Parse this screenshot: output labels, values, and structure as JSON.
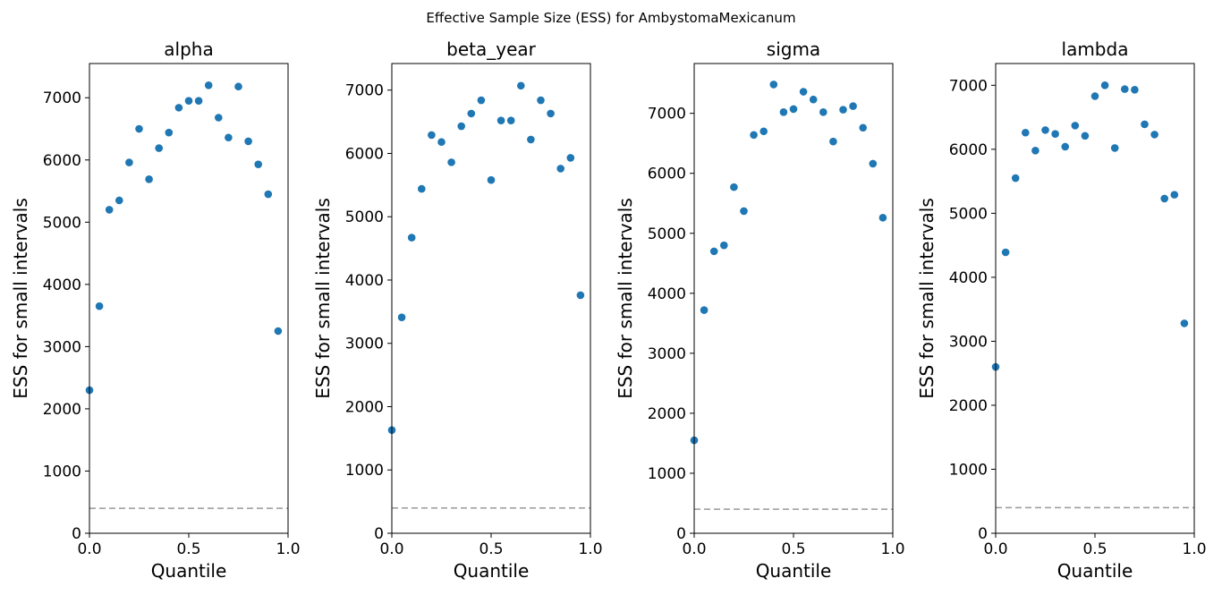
{
  "figure": {
    "suptitle": "Effective Sample Size (ESS) for AmbystomaMexicanum"
  },
  "colors": {
    "point": "#1f77b4",
    "reference_line": "#999999"
  },
  "chart_data": [
    {
      "type": "scatter",
      "title": "alpha",
      "xlabel": "Quantile",
      "ylabel": "ESS for small intervals",
      "xlim": [
        0,
        1
      ],
      "ylim": [
        0,
        7550
      ],
      "xticks": [
        "0.0",
        "0.5",
        "1.0"
      ],
      "yticks": [
        0,
        1000,
        2000,
        3000,
        4000,
        5000,
        6000,
        7000
      ],
      "reference_y": 400,
      "grid": false,
      "x": [
        0.0,
        0.05,
        0.1,
        0.15,
        0.2,
        0.25,
        0.3,
        0.35,
        0.4,
        0.45,
        0.5,
        0.55,
        0.6,
        0.65,
        0.7,
        0.75,
        0.8,
        0.85,
        0.9,
        0.95
      ],
      "y": [
        2300,
        3650,
        5200,
        5350,
        5960,
        6500,
        5690,
        6190,
        6440,
        6840,
        6950,
        6950,
        7200,
        6680,
        6360,
        7180,
        6300,
        5930,
        5450,
        3250
      ]
    },
    {
      "type": "scatter",
      "title": "beta_year",
      "xlabel": "Quantile",
      "ylabel": "ESS for small intervals",
      "xlim": [
        0,
        1
      ],
      "ylim": [
        0,
        7420
      ],
      "xticks": [
        "0.0",
        "0.5",
        "1.0"
      ],
      "yticks": [
        0,
        1000,
        2000,
        3000,
        4000,
        5000,
        6000,
        7000
      ],
      "reference_y": 400,
      "grid": false,
      "x": [
        0.0,
        0.05,
        0.1,
        0.15,
        0.2,
        0.25,
        0.3,
        0.35,
        0.4,
        0.45,
        0.5,
        0.55,
        0.6,
        0.65,
        0.7,
        0.75,
        0.8,
        0.85,
        0.9,
        0.95
      ],
      "y": [
        1630,
        3410,
        4670,
        5440,
        6290,
        6180,
        5860,
        6430,
        6630,
        6840,
        5580,
        6520,
        6520,
        7070,
        6220,
        6840,
        6630,
        5760,
        5930,
        3760
      ]
    },
    {
      "type": "scatter",
      "title": "sigma",
      "xlabel": "Quantile",
      "ylabel": "ESS for small intervals",
      "xlim": [
        0,
        1
      ],
      "ylim": [
        0,
        7830
      ],
      "xticks": [
        "0.0",
        "0.5",
        "1.0"
      ],
      "yticks": [
        0,
        1000,
        2000,
        3000,
        4000,
        5000,
        6000,
        7000
      ],
      "reference_y": 400,
      "grid": false,
      "x": [
        0.0,
        0.05,
        0.1,
        0.15,
        0.2,
        0.25,
        0.3,
        0.35,
        0.4,
        0.45,
        0.5,
        0.55,
        0.6,
        0.65,
        0.7,
        0.75,
        0.8,
        0.85,
        0.9,
        0.95
      ],
      "y": [
        1550,
        3720,
        4700,
        4800,
        5770,
        5370,
        6640,
        6700,
        7480,
        7020,
        7070,
        7360,
        7230,
        7020,
        6530,
        7060,
        7120,
        6760,
        6160,
        5260
      ]
    },
    {
      "type": "scatter",
      "title": "lambda",
      "xlabel": "Quantile",
      "ylabel": "ESS for small intervals",
      "xlim": [
        0,
        1
      ],
      "ylim": [
        0,
        7340
      ],
      "xticks": [
        "0.0",
        "0.5",
        "1.0"
      ],
      "yticks": [
        0,
        1000,
        2000,
        3000,
        4000,
        5000,
        6000,
        7000
      ],
      "reference_y": 400,
      "grid": false,
      "x": [
        0.0,
        0.05,
        0.1,
        0.15,
        0.2,
        0.25,
        0.3,
        0.35,
        0.4,
        0.45,
        0.5,
        0.55,
        0.6,
        0.65,
        0.7,
        0.75,
        0.8,
        0.85,
        0.9,
        0.95
      ],
      "y": [
        2600,
        4390,
        5550,
        6260,
        5980,
        6300,
        6240,
        6040,
        6370,
        6210,
        6830,
        7000,
        6020,
        6940,
        6930,
        6390,
        6230,
        5230,
        5290,
        3280
      ]
    }
  ]
}
